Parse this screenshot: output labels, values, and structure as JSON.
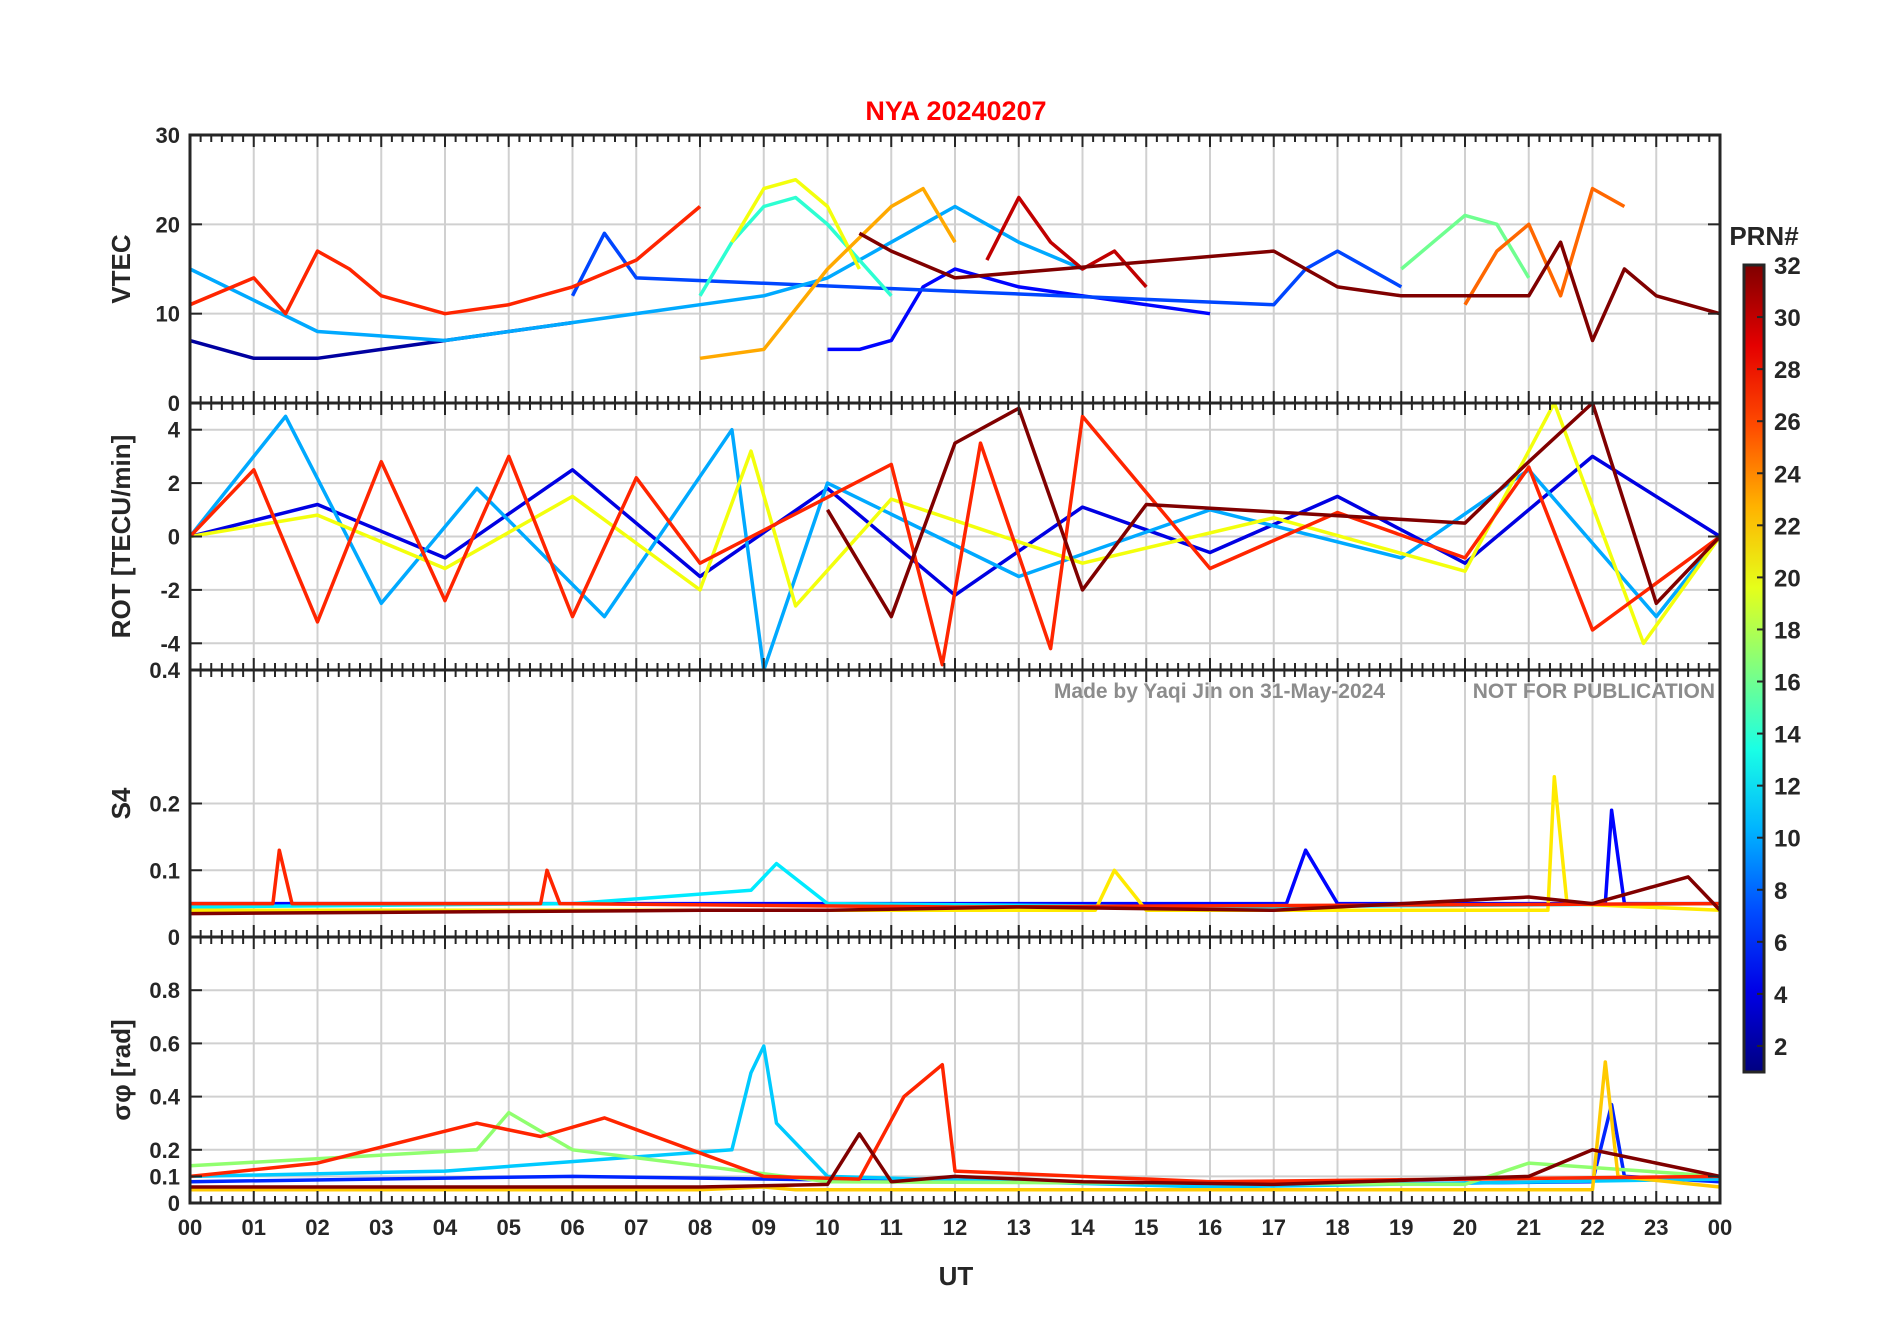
{
  "chart_data": {
    "type": "line",
    "title": "NYA   20240207",
    "watermark_left": "Made by Yaqi Jin on 31-May-2024",
    "watermark_right": "NOT FOR PUBLICATION",
    "xlabel": "UT",
    "x_ticks": [
      "00",
      "01",
      "02",
      "03",
      "04",
      "05",
      "06",
      "07",
      "08",
      "09",
      "10",
      "11",
      "12",
      "13",
      "14",
      "15",
      "16",
      "17",
      "18",
      "19",
      "20",
      "21",
      "22",
      "23",
      "00"
    ],
    "xlim_hours": [
      0,
      24
    ],
    "grid": true,
    "colorbar": {
      "label": "PRN#",
      "range": [
        1,
        32
      ],
      "ticks": [
        "2",
        "4",
        "6",
        "8",
        "10",
        "12",
        "14",
        "16",
        "18",
        "20",
        "22",
        "24",
        "26",
        "28",
        "30",
        "32"
      ],
      "colormap": "jet"
    },
    "panels": [
      {
        "key": "vtec",
        "ylabel": "VTEC",
        "ylim": [
          0,
          30
        ],
        "y_ticks": [
          "0",
          "10",
          "20",
          "30"
        ],
        "y_tick_values": [
          0,
          10,
          20,
          30
        ],
        "series": [
          {
            "prn": 2,
            "x": [
              0.0,
              1.0,
              2.0,
              3.0,
              4.0,
              5.0,
              6.0
            ],
            "y": [
              7,
              5,
              5,
              6,
              7,
              8,
              9
            ]
          },
          {
            "prn": 5,
            "x": [
              10.0,
              10.5,
              11.0,
              11.5,
              12.0,
              13.0,
              14.0,
              15.0,
              16.0
            ],
            "y": [
              6,
              6,
              7,
              13,
              15,
              13,
              12,
              11,
              10
            ]
          },
          {
            "prn": 7,
            "x": [
              6.0,
              6.5,
              7.0,
              17.0,
              17.5,
              18.0,
              19.0
            ],
            "y": [
              12,
              19,
              14,
              11,
              15,
              17,
              13
            ]
          },
          {
            "prn": 10,
            "x": [
              0.0,
              2.0,
              4.0,
              8.0,
              9.0,
              10.0,
              11.0,
              12.0,
              13.0,
              14.0
            ],
            "y": [
              15,
              8,
              7,
              11,
              12,
              14,
              18,
              22,
              18,
              15
            ]
          },
          {
            "prn": 14,
            "x": [
              8.0,
              8.5,
              9.0,
              9.5,
              10.0,
              10.5,
              11.0
            ],
            "y": [
              12,
              18,
              22,
              23,
              20,
              16,
              12
            ]
          },
          {
            "prn": 16,
            "x": [
              19.0,
              19.5,
              20.0,
              20.5,
              21.0
            ],
            "y": [
              15,
              18,
              21,
              20,
              14
            ]
          },
          {
            "prn": 20,
            "x": [
              8.5,
              9.0,
              9.5,
              10.0,
              10.5
            ],
            "y": [
              18,
              24,
              25,
              22,
              15
            ]
          },
          {
            "prn": 23,
            "x": [
              8.0,
              9.0,
              10.0,
              11.0,
              11.5,
              12.0
            ],
            "y": [
              5,
              6,
              15,
              22,
              24,
              18
            ]
          },
          {
            "prn": 25,
            "x": [
              20.0,
              20.5,
              21.0,
              21.5,
              22.0,
              22.5
            ],
            "y": [
              11,
              17,
              20,
              12,
              24,
              22
            ]
          },
          {
            "prn": 27,
            "x": [
              0.0,
              1.0,
              1.5,
              2.0,
              2.5,
              3.0,
              4.0,
              5.0,
              6.0,
              7.0,
              8.0
            ],
            "y": [
              11,
              14,
              10,
              17,
              15,
              12,
              10,
              11,
              13,
              16,
              22
            ]
          },
          {
            "prn": 30,
            "x": [
              12.5,
              13.0,
              13.5,
              14.0,
              14.5,
              15.0
            ],
            "y": [
              16,
              23,
              18,
              15,
              17,
              13
            ]
          },
          {
            "prn": 32,
            "x": [
              10.5,
              11.0,
              12.0,
              17.0,
              18.0,
              19.0,
              21.0,
              21.5,
              22.0,
              22.5,
              23.0,
              24.0
            ],
            "y": [
              19,
              17,
              14,
              17,
              13,
              12,
              12,
              18,
              7,
              15,
              12,
              10
            ]
          }
        ]
      },
      {
        "key": "rot",
        "ylabel": "ROT [TECU/min]",
        "ylim": [
          -5,
          5
        ],
        "y_ticks": [
          "-4",
          "-2",
          "0",
          "2",
          "4"
        ],
        "y_tick_values": [
          -4,
          -2,
          0,
          2,
          4
        ],
        "series": [
          {
            "prn": 4,
            "x": [
              0,
              2,
              4,
              6,
              8,
              10,
              12,
              14,
              16,
              18,
              20,
              22,
              24
            ],
            "y": [
              0,
              1.2,
              -0.8,
              2.5,
              -1.5,
              1.8,
              -2.2,
              1.1,
              -0.6,
              1.5,
              -1.0,
              3.0,
              0
            ]
          },
          {
            "prn": 10,
            "x": [
              0,
              1.5,
              3,
              4.5,
              6.5,
              8.5,
              9,
              10,
              13,
              16,
              19,
              21,
              23,
              24
            ],
            "y": [
              0,
              4.5,
              -2.5,
              1.8,
              -3.0,
              4.0,
              -5.0,
              2.0,
              -1.5,
              1.0,
              -0.8,
              2.5,
              -3.0,
              0
            ]
          },
          {
            "prn": 20,
            "x": [
              0,
              2,
              4,
              6,
              8,
              8.8,
              9.5,
              11,
              14,
              17,
              20,
              21.4,
              22.8,
              24
            ],
            "y": [
              0,
              0.8,
              -1.2,
              1.5,
              -2.0,
              3.2,
              -2.6,
              1.4,
              -1.0,
              0.7,
              -1.3,
              5.0,
              -4.0,
              0
            ]
          },
          {
            "prn": 27,
            "x": [
              0,
              1,
              2,
              3,
              4,
              5,
              6,
              7,
              8,
              11,
              11.8,
              12.4,
              13.5,
              14,
              16,
              18,
              20,
              21,
              22,
              24
            ],
            "y": [
              0,
              2.5,
              -3.2,
              2.8,
              -2.4,
              3.0,
              -3.0,
              2.2,
              -1.0,
              2.7,
              -4.8,
              3.5,
              -4.2,
              4.5,
              -1.2,
              0.9,
              -0.8,
              2.6,
              -3.5,
              0
            ]
          },
          {
            "prn": 32,
            "x": [
              10,
              11,
              12,
              13,
              14,
              15,
              20,
              21,
              22,
              23,
              24
            ],
            "y": [
              1.0,
              -3.0,
              3.5,
              4.8,
              -2.0,
              1.2,
              0.5,
              2.8,
              5.0,
              -2.5,
              0
            ]
          }
        ]
      },
      {
        "key": "s4",
        "ylabel": "S4",
        "ylim": [
          0,
          0.4
        ],
        "y_ticks": [
          "0",
          "0.1",
          "0.2",
          "0.4"
        ],
        "y_tick_values": [
          0,
          0.1,
          0.2,
          0.4
        ],
        "series": [
          {
            "prn": 5,
            "x": [
              0,
              6,
              12,
              17.2,
              17.5,
              18,
              21,
              22.2,
              22.3,
              22.5,
              24
            ],
            "y": [
              0.05,
              0.05,
              0.05,
              0.05,
              0.13,
              0.05,
              0.05,
              0.05,
              0.19,
              0.05,
              0.05
            ]
          },
          {
            "prn": 12,
            "x": [
              0,
              6,
              8.8,
              9.2,
              10,
              16,
              24
            ],
            "y": [
              0.045,
              0.05,
              0.07,
              0.11,
              0.05,
              0.045,
              0.05
            ]
          },
          {
            "prn": 21,
            "x": [
              0,
              12,
              14.2,
              14.5,
              15,
              21,
              21.3,
              21.4,
              21.6,
              24
            ],
            "y": [
              0.04,
              0.04,
              0.04,
              0.1,
              0.04,
              0.04,
              0.04,
              0.24,
              0.05,
              0.04
            ]
          },
          {
            "prn": 27,
            "x": [
              0,
              1.3,
              1.4,
              1.6,
              5.5,
              5.6,
              5.8,
              12,
              24
            ],
            "y": [
              0.05,
              0.05,
              0.13,
              0.05,
              0.05,
              0.1,
              0.05,
              0.045,
              0.05
            ]
          },
          {
            "prn": 32,
            "x": [
              0,
              8,
              10,
              13,
              17,
              21,
              22,
              23.5,
              24
            ],
            "y": [
              0.035,
              0.04,
              0.04,
              0.045,
              0.04,
              0.06,
              0.05,
              0.09,
              0.04
            ]
          }
        ]
      },
      {
        "key": "sigma_phi",
        "ylabel": "σφ [rad]",
        "ylim": [
          0,
          1.0
        ],
        "y_ticks": [
          "0",
          "0.1",
          "0.2",
          "0.4",
          "0.6",
          "0.8"
        ],
        "y_tick_values": [
          0,
          0.1,
          0.2,
          0.4,
          0.6,
          0.8
        ],
        "series": [
          {
            "prn": 6,
            "x": [
              0,
              6,
              12,
              18,
              22,
              22.3,
              22.5,
              24
            ],
            "y": [
              0.08,
              0.1,
              0.08,
              0.07,
              0.08,
              0.37,
              0.1,
              0.08
            ]
          },
          {
            "prn": 11,
            "x": [
              0,
              4,
              8.5,
              8.8,
              9.0,
              9.2,
              10,
              16,
              24
            ],
            "y": [
              0.1,
              0.12,
              0.2,
              0.49,
              0.59,
              0.3,
              0.1,
              0.06,
              0.09
            ]
          },
          {
            "prn": 17,
            "x": [
              0,
              4.5,
              5,
              6,
              10,
              20,
              21,
              24
            ],
            "y": [
              0.14,
              0.2,
              0.34,
              0.2,
              0.08,
              0.07,
              0.15,
              0.1
            ]
          },
          {
            "prn": 22,
            "x": [
              0,
              8,
              9,
              9.5,
              12,
              20,
              22,
              22.2,
              22.4,
              24
            ],
            "y": [
              0.05,
              0.05,
              0.06,
              0.05,
              0.05,
              0.05,
              0.05,
              0.53,
              0.1,
              0.06
            ]
          },
          {
            "prn": 27,
            "x": [
              0,
              2,
              4.5,
              5.5,
              6.5,
              9,
              10.5,
              11.2,
              11.8,
              12,
              16,
              20,
              24
            ],
            "y": [
              0.1,
              0.15,
              0.3,
              0.25,
              0.32,
              0.1,
              0.09,
              0.4,
              0.52,
              0.12,
              0.08,
              0.09,
              0.1
            ]
          },
          {
            "prn": 32,
            "x": [
              0,
              8,
              10,
              10.5,
              11,
              12,
              14,
              17,
              21,
              22,
              23,
              24
            ],
            "y": [
              0.06,
              0.06,
              0.07,
              0.26,
              0.08,
              0.1,
              0.08,
              0.07,
              0.1,
              0.2,
              0.15,
              0.1
            ]
          }
        ]
      }
    ]
  }
}
